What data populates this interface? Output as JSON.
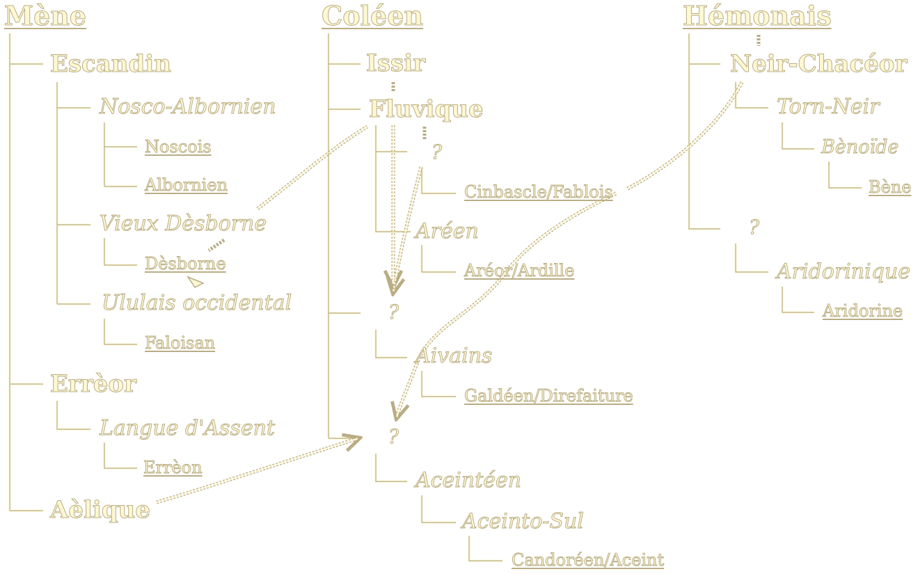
{
  "colors": {
    "text_fill": "#fff8d2",
    "outline": "#b9ad85"
  },
  "families": {
    "mene": {
      "title": "Mène",
      "escandin": "Escandin",
      "nosco_albornien": "Nosco-Albornien",
      "noscois": "Noscois",
      "albornien": "Albornien",
      "vieux_desborne": "Vieux Dèsborne",
      "desborne": "Dèsborne",
      "ululais_occidental": "Ululais occidental",
      "faloisan": "Faloisan",
      "erreor": "Errèor",
      "langue_assent": "Langue d'Assent",
      "erreon": "Errèon",
      "aelique": "Aèlique"
    },
    "coleen": {
      "title": "Coléen",
      "issir": "Issir",
      "fluvique": "Fluvique",
      "unknown_a": "?",
      "cinbascle": "Cinbascle/Fablois",
      "areen": "Aréen",
      "areor": "Aréor/Ardille",
      "unknown_b": "?",
      "aivains": "Aivains",
      "galdeen": "Galdéen/Direfaiture",
      "unknown_c": "?",
      "aceinteen": "Aceintéen",
      "aceinto_sul": "Aceinto-Sul",
      "candoreen": "Candoréen/Aceint"
    },
    "hemonais": {
      "title": "Hémonais",
      "neir_chaceor": "Neir-Chacéor",
      "torn_neir": "Torn-Neir",
      "benoide": "Bènoïde",
      "bene": "Bène",
      "unknown_d": "?",
      "aridorinique": "Aridorinique",
      "aridorine": "Aridorine"
    }
  }
}
